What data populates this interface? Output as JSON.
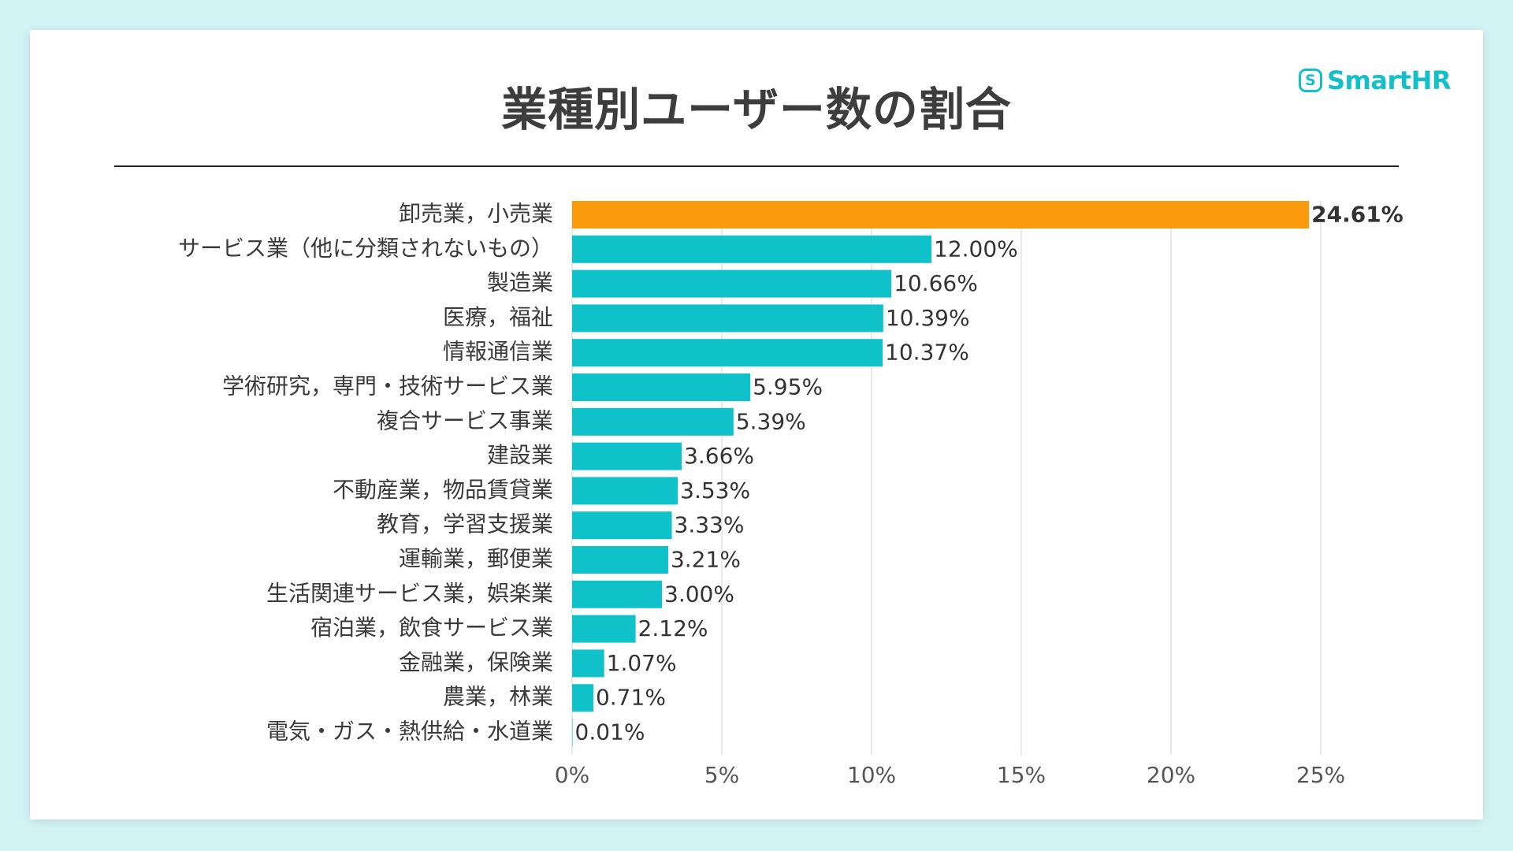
{
  "title": "業種別ユーザー数の割合",
  "brand": {
    "name": "SmartHR",
    "mark": "S",
    "color": "#14bfc8"
  },
  "colors": {
    "bar": "#0fc2ca",
    "highlight": "#f99b0c",
    "grid": "#e2e2e2"
  },
  "chart_data": {
    "type": "bar",
    "orientation": "horizontal",
    "title": "業種別ユーザー数の割合",
    "xlabel": "",
    "ylabel": "",
    "xlim": [
      0,
      27.5
    ],
    "grid": true,
    "ticks": [
      0,
      5,
      10,
      15,
      20,
      25
    ],
    "tick_labels": [
      "0%",
      "5%",
      "10%",
      "15%",
      "20%",
      "25%"
    ],
    "categories": [
      "卸売業，小売業",
      "サービス業（他に分類されないもの）",
      "製造業",
      "医療，福祉",
      "情報通信業",
      "学術研究，専門・技術サービス業",
      "複合サービス事業",
      "建設業",
      "不動産業，物品賃貸業",
      "教育，学習支援業",
      "運輸業，郵便業",
      "生活関連サービス業，娯楽業",
      "宿泊業，飲食サービス業",
      "金融業，保険業",
      "農業，林業",
      "電気・ガス・熱供給・水道業"
    ],
    "values": [
      24.61,
      12.0,
      10.66,
      10.39,
      10.37,
      5.95,
      5.39,
      3.66,
      3.53,
      3.33,
      3.21,
      3.0,
      2.12,
      1.07,
      0.71,
      0.01
    ],
    "value_labels": [
      "24.61%",
      "12.00%",
      "10.66%",
      "10.39%",
      "10.37%",
      "5.95%",
      "5.39%",
      "3.66%",
      "3.53%",
      "3.33%",
      "3.21%",
      "3.00%",
      "2.12%",
      "1.07%",
      "0.71%",
      "0.01%"
    ],
    "highlight_index": 0
  }
}
